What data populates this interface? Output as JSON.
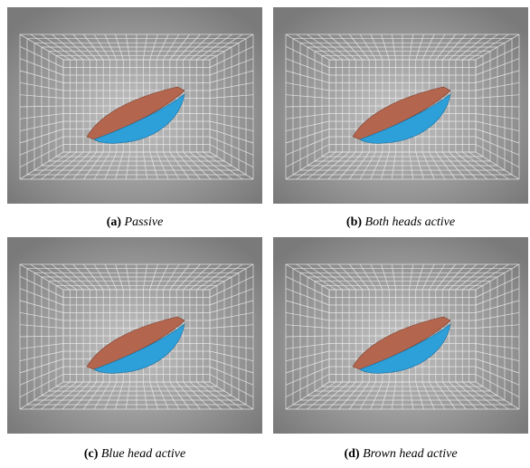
{
  "figure": {
    "panels": [
      {
        "label": "(a)",
        "caption": "Passive"
      },
      {
        "label": "(b)",
        "caption": "Both heads active"
      },
      {
        "label": "(c)",
        "caption": "Blue head active"
      },
      {
        "label": "(d)",
        "caption": "Brown head active"
      }
    ]
  }
}
